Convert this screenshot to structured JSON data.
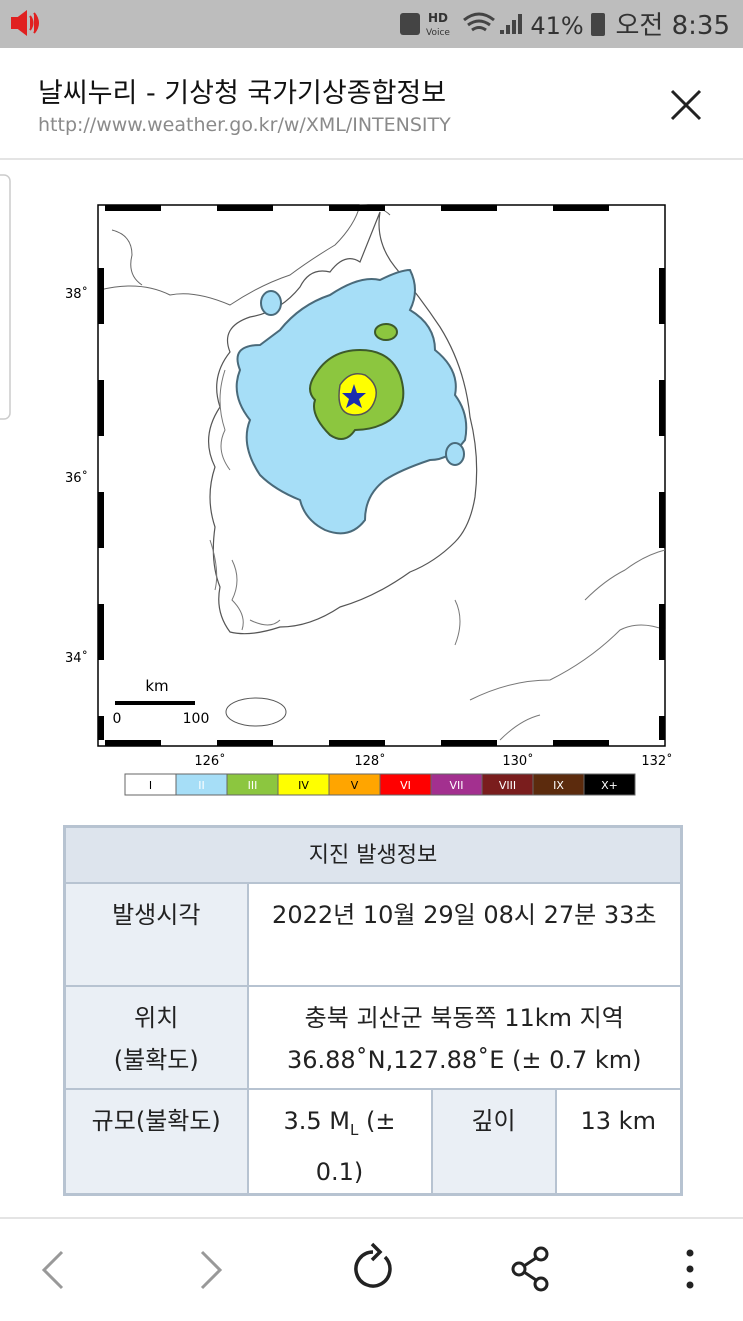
{
  "status_bar": {
    "hd": "HD",
    "voice": "Voice",
    "battery": "41%",
    "time": "오전 8:35"
  },
  "header": {
    "title": "날씨누리 - 기상청 국가기상종합정보",
    "url": "http://www.weather.go.kr/w/XML/INTENSITY"
  },
  "map": {
    "lat_labels": [
      "38˚",
      "36˚",
      "34˚"
    ],
    "lon_labels": [
      "126˚",
      "128˚",
      "130˚",
      "132˚"
    ],
    "scale": {
      "unit": "km",
      "start": "0",
      "end": "100"
    },
    "legend": [
      {
        "label": "I",
        "color": "#ffffff"
      },
      {
        "label": "II",
        "color": "#a6def7"
      },
      {
        "label": "III",
        "color": "#8cc63f"
      },
      {
        "label": "IV",
        "color": "#ffff00"
      },
      {
        "label": "V",
        "color": "#ffa500"
      },
      {
        "label": "VI",
        "color": "#ff0000"
      },
      {
        "label": "VII",
        "color": "#a3308f"
      },
      {
        "label": "VIII",
        "color": "#7a1d1d"
      },
      {
        "label": "IX",
        "color": "#5c2b0d"
      },
      {
        "label": "X+",
        "color": "#000000"
      }
    ]
  },
  "table": {
    "title": "지진 발생정보",
    "rows": [
      {
        "label": "발생시각",
        "value": "2022년 10월 29일 08시 27분 33초"
      },
      {
        "label": [
          "위치",
          "(불확도)"
        ],
        "value": [
          "충북 괴산군 북동쪽 11km 지역",
          "36.88˚N,127.88˚E (± 0.7 km)"
        ]
      },
      {
        "label": "규모(불확도)",
        "magnitude": [
          "3.5 M",
          "L",
          " (± 0.1)"
        ],
        "depth_label": "깊이",
        "depth": "13 km"
      }
    ]
  }
}
